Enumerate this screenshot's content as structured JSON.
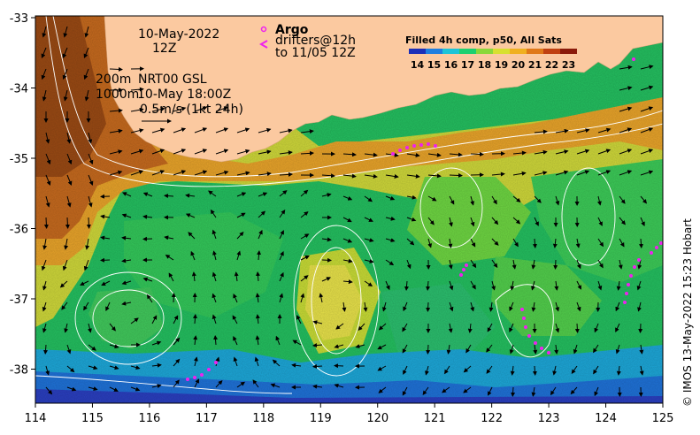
{
  "map": {
    "date_line1": "10-May-2022",
    "date_line2": "12Z",
    "depth_line1": "200m",
    "depth_line2": "1000m",
    "model_label": "NRT00 GSL",
    "model_time": "10-May 18:00Z",
    "scale_label": "0.5m/s (1kt 24h)",
    "argo_label": "Argo",
    "drifters_line1": "drifters@12h",
    "drifters_line2": "to 11/05 12Z",
    "colorbar_title": "Filled 4h comp, p50, All Sats",
    "colorbar_ticks": [
      "14",
      "15",
      "16",
      "17",
      "18",
      "19",
      "20",
      "21",
      "22",
      "23"
    ],
    "colorbar_colors": [
      "#1c2fb8",
      "#1f7fe0",
      "#1cc4d8",
      "#1ed070",
      "#8ad83a",
      "#d8e030",
      "#f0b020",
      "#e07818",
      "#c04010",
      "#8a1a0a"
    ],
    "credit": "© IMOS 13-May-2022 15:23 Hobart",
    "x_ticks": [
      "114",
      "115",
      "116",
      "117",
      "118",
      "119",
      "120",
      "121",
      "122",
      "123",
      "124",
      "125"
    ],
    "y_ticks": [
      "-33",
      "-34",
      "-35",
      "-36",
      "-37",
      "-38"
    ],
    "colors": {
      "land": "#fbc9a0",
      "ocean_warm": "#e08a2a",
      "ocean_mid": "#8ed23c",
      "ocean_cool": "#1ebd6a",
      "ocean_cold": "#1fa0e0",
      "drifter": "#ee22ee"
    }
  }
}
